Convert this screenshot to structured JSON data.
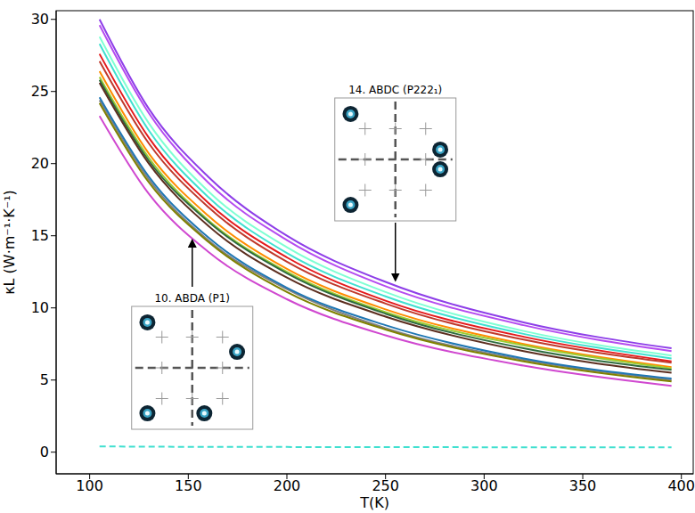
{
  "chart_data": {
    "type": "line",
    "x": [
      105,
      130,
      160,
      200,
      250,
      320,
      395
    ],
    "xlim": [
      83,
      406
    ],
    "xticks": [
      100,
      150,
      200,
      250,
      300,
      350,
      400
    ],
    "ylim": [
      -1.5,
      30.6
    ],
    "yticks": [
      0,
      5,
      10,
      15,
      20,
      25,
      30
    ],
    "x_label": "T(K)",
    "y_label": "κL (W·m⁻¹·K⁻¹)",
    "series": [
      {
        "color": "#8e3ee8",
        "values": [
          30.0,
          23.8,
          19.1,
          15.0,
          11.8,
          9.0,
          7.2
        ]
      },
      {
        "color": "#b54cf0",
        "values": [
          29.6,
          23.5,
          18.7,
          14.7,
          11.5,
          8.8,
          7.0
        ]
      },
      {
        "color": "#7fffd4",
        "values": [
          28.8,
          22.8,
          18.1,
          14.2,
          11.1,
          8.4,
          6.7
        ]
      },
      {
        "color": "#40e0d0",
        "values": [
          28.3,
          22.3,
          17.7,
          13.8,
          10.8,
          8.2,
          6.5
        ]
      },
      {
        "color": "#e41a1c",
        "values": [
          27.6,
          21.8,
          17.3,
          13.5,
          10.5,
          8.0,
          6.3
        ]
      },
      {
        "color": "#c0392b",
        "values": [
          27.1,
          21.4,
          17.0,
          13.2,
          10.3,
          7.8,
          6.2
        ]
      },
      {
        "color": "#ff8c00",
        "values": [
          26.4,
          20.7,
          16.4,
          12.7,
          9.9,
          7.5,
          5.9
        ]
      },
      {
        "color": "#9acd32",
        "values": [
          26.0,
          20.4,
          16.1,
          12.5,
          9.7,
          7.4,
          5.8
        ]
      },
      {
        "color": "#2e6b3f",
        "values": [
          25.8,
          20.2,
          16.0,
          12.4,
          9.6,
          7.2,
          5.7
        ]
      },
      {
        "color": "#5c2e1f",
        "values": [
          25.6,
          20.0,
          15.7,
          12.1,
          9.4,
          7.0,
          5.5
        ]
      },
      {
        "color": "#808080",
        "values": [
          24.4,
          18.9,
          14.7,
          11.3,
          8.6,
          6.4,
          5.0
        ]
      },
      {
        "color": "#1f77b4",
        "values": [
          24.6,
          19.1,
          14.9,
          11.4,
          8.8,
          6.5,
          5.1
        ]
      },
      {
        "color": "#808000",
        "values": [
          24.2,
          18.7,
          14.6,
          11.1,
          8.5,
          6.3,
          4.9
        ]
      },
      {
        "color": "#d048d0",
        "values": [
          23.3,
          17.9,
          13.9,
          10.6,
          8.1,
          6.0,
          4.6
        ]
      },
      {
        "color": "#40e0d0",
        "line_style": "dashed",
        "values": [
          0.4,
          0.38,
          0.37,
          0.36,
          0.35,
          0.34,
          0.33
        ]
      }
    ],
    "annotations": [
      {
        "text": "10. ABDA (P1)",
        "x": 152,
        "y": 14.8
      },
      {
        "text": "14. ABDC (P222₁)",
        "x": 255,
        "y": 11.8
      }
    ]
  }
}
